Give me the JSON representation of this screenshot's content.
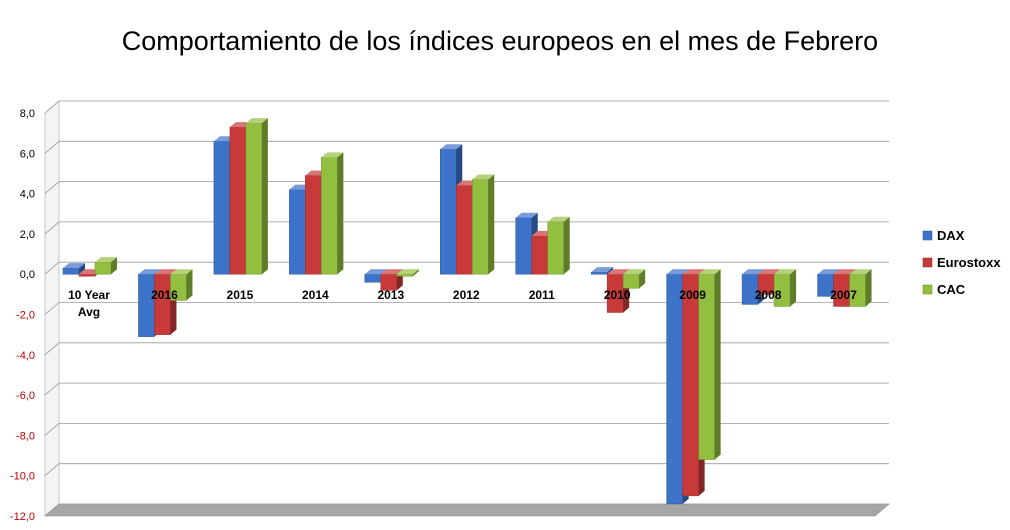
{
  "chart_data": {
    "type": "bar",
    "title": "Comportamiento de los índices europeos en el mes de Febrero",
    "xlabel": "",
    "ylabel": "",
    "categories": [
      "10 Year Avg",
      "2016",
      "2015",
      "2014",
      "2013",
      "2012",
      "2011",
      "2010",
      "2009",
      "2008",
      "2007"
    ],
    "series": [
      {
        "name": "DAX",
        "color": "#3d72c9",
        "values": [
          0.3,
          -3.1,
          6.6,
          4.2,
          -0.4,
          6.2,
          2.8,
          0.1,
          -11.4,
          -1.5,
          -1.1
        ]
      },
      {
        "name": "Eurostoxx",
        "color": "#c83a3a",
        "values": [
          -0.1,
          -3.0,
          7.3,
          4.9,
          -0.8,
          4.4,
          1.9,
          -1.9,
          -11.0,
          -1.0,
          -1.6
        ]
      },
      {
        "name": "CAC",
        "color": "#92bf3f",
        "values": [
          0.6,
          -1.3,
          7.5,
          5.8,
          -0.1,
          4.7,
          2.6,
          -0.7,
          -9.2,
          -1.6,
          -1.6
        ]
      }
    ],
    "ylim": [
      -12,
      8
    ],
    "yticks": [
      8.0,
      6.0,
      4.0,
      2.0,
      0.0,
      -2.0,
      -4.0,
      -6.0,
      -8.0,
      -10.0,
      -12.0
    ],
    "ytick_labels": [
      "8,0",
      "6,0",
      "4,0",
      "2,0",
      "0,0",
      "-2,0",
      "-4,0",
      "-6,0",
      "-8,0",
      "-10,0",
      "-12,0"
    ],
    "negative_tick_color": "#c00000",
    "grid": true,
    "legend": "right",
    "style": "3d-clustered-column"
  }
}
